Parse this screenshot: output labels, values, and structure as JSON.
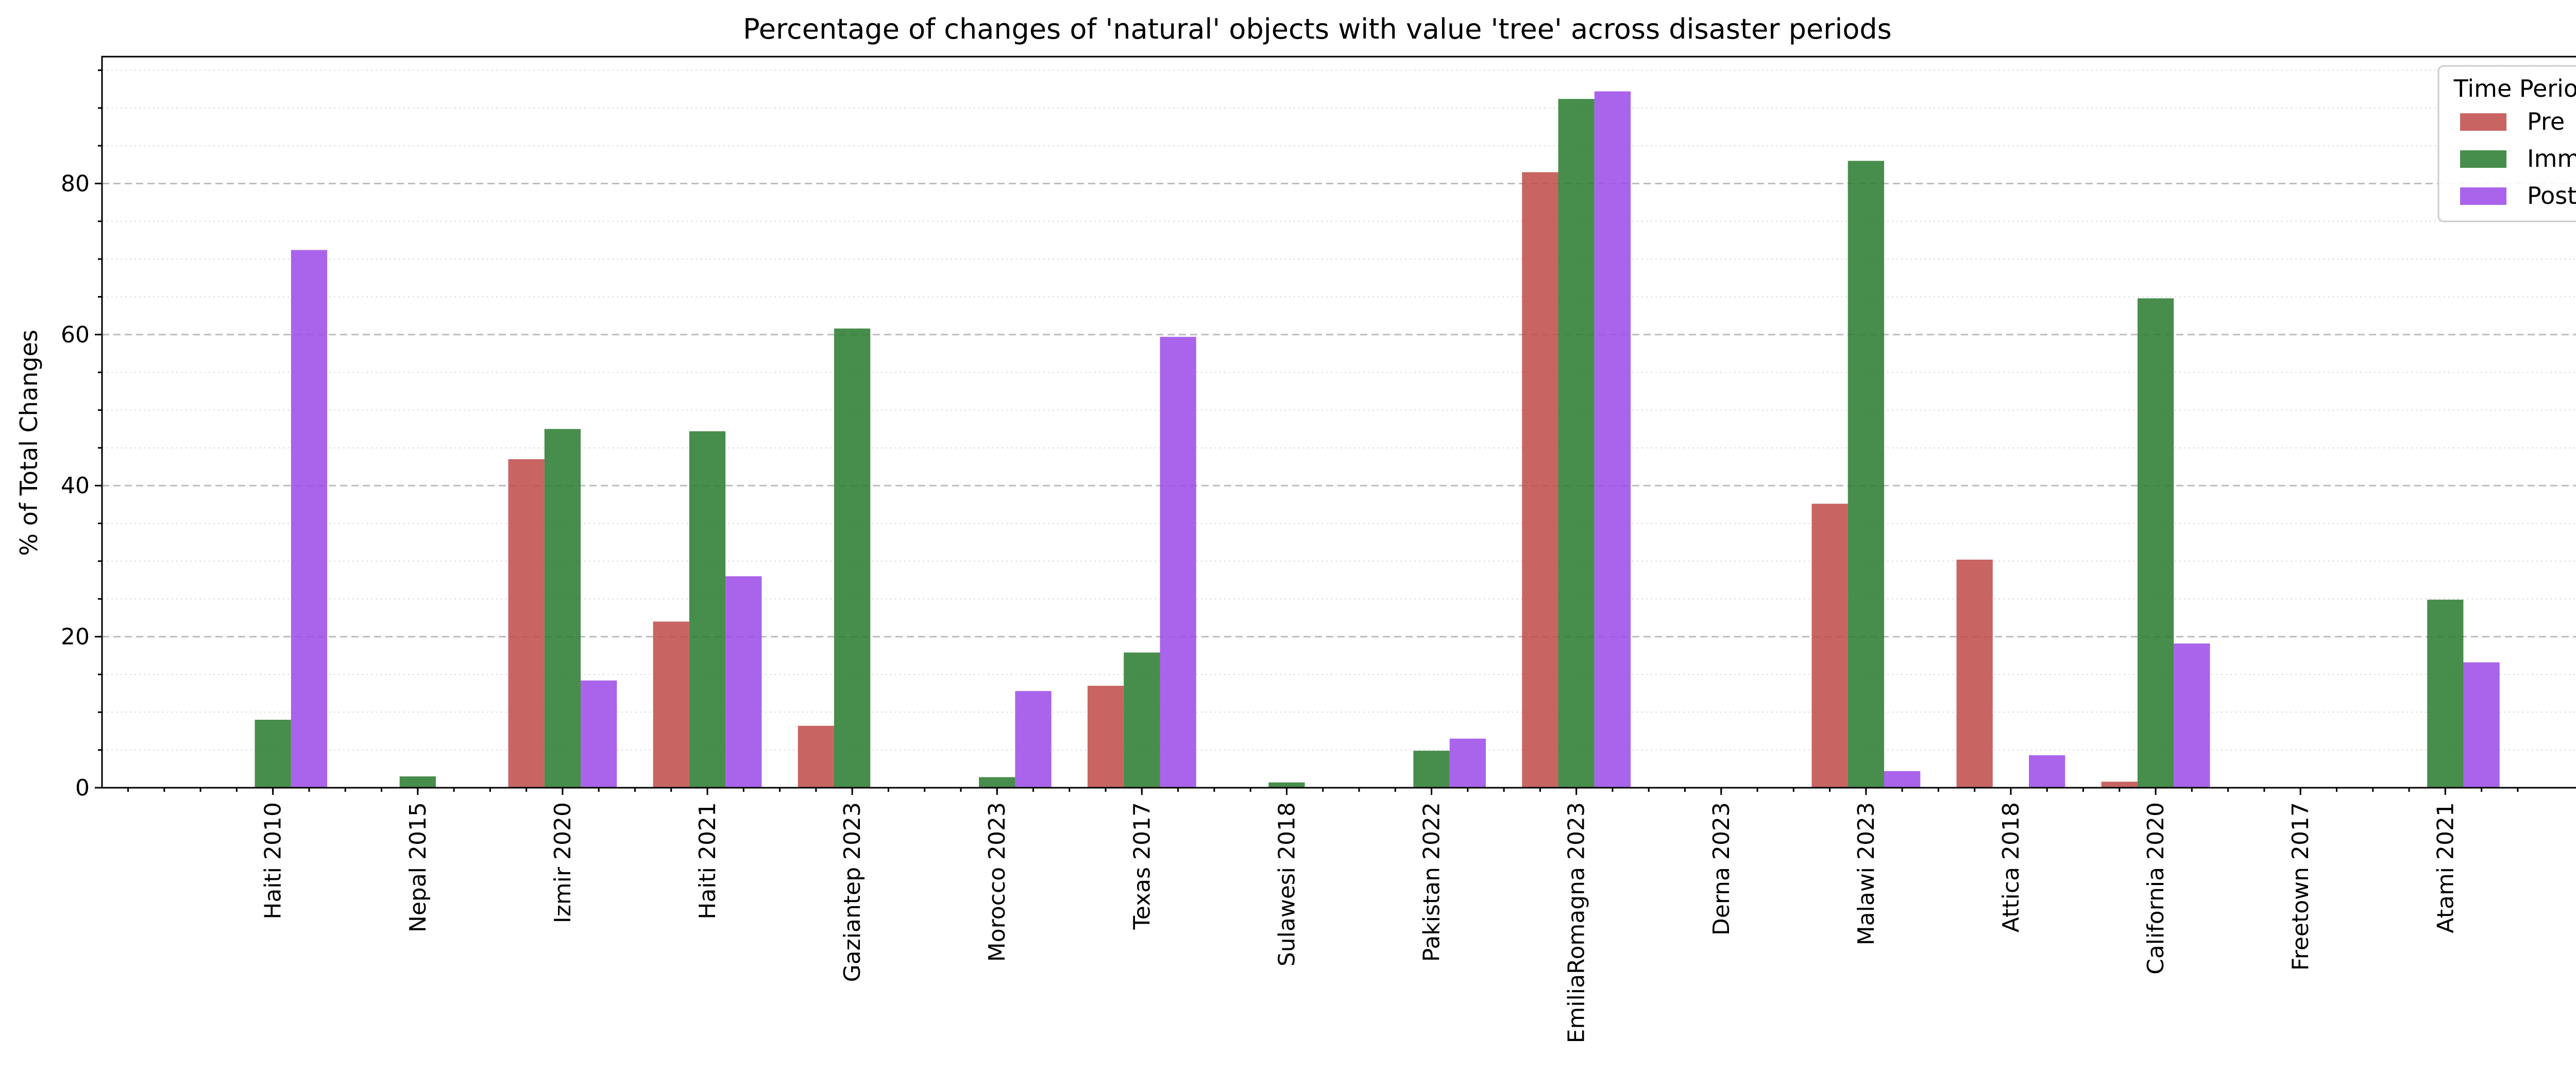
{
  "chart_data": {
    "type": "bar",
    "title": "Percentage of changes of 'natural' objects with value 'tree' across disaster periods",
    "xlabel": "",
    "ylabel": "% of Total Changes",
    "categories": [
      "Haiti 2010",
      "Nepal 2015",
      "Izmir 2020",
      "Haiti 2021",
      "Gaziantep 2023",
      "Morocco 2023",
      "Texas 2017",
      "Sulawesi 2018",
      "Pakistan 2022",
      "EmiliaRomagna 2023",
      "Derna 2023",
      "Malawi 2023",
      "Attica 2018",
      "California 2020",
      "Freetown 2017",
      "Atami 2021"
    ],
    "series": [
      {
        "name": "Pre",
        "color": "#c0504d",
        "values": [
          0,
          0,
          43.5,
          22,
          8.2,
          0,
          13.5,
          0,
          0,
          81.5,
          0,
          37.6,
          30.2,
          0.8,
          0,
          0
        ]
      },
      {
        "name": "Imm",
        "color": "#2e7d32",
        "values": [
          9,
          1.5,
          47.5,
          47.2,
          60.8,
          1.4,
          17.9,
          0.7,
          4.9,
          91.2,
          0,
          83,
          0,
          64.8,
          0,
          24.9
        ]
      },
      {
        "name": "Post",
        "color": "#9e4ee8",
        "values": [
          71.2,
          0,
          14.2,
          28,
          0,
          12.8,
          59.7,
          0,
          6.5,
          92.2,
          0,
          2.2,
          4.3,
          19.1,
          0,
          16.6
        ]
      }
    ],
    "ylim": [
      0,
      96.8
    ],
    "y_ticks": [
      0,
      20,
      40,
      60,
      80
    ],
    "grid": {
      "major": "dashed",
      "minor": "dotted"
    },
    "legend": {
      "title": "Time Period",
      "placement": "top-right"
    }
  }
}
